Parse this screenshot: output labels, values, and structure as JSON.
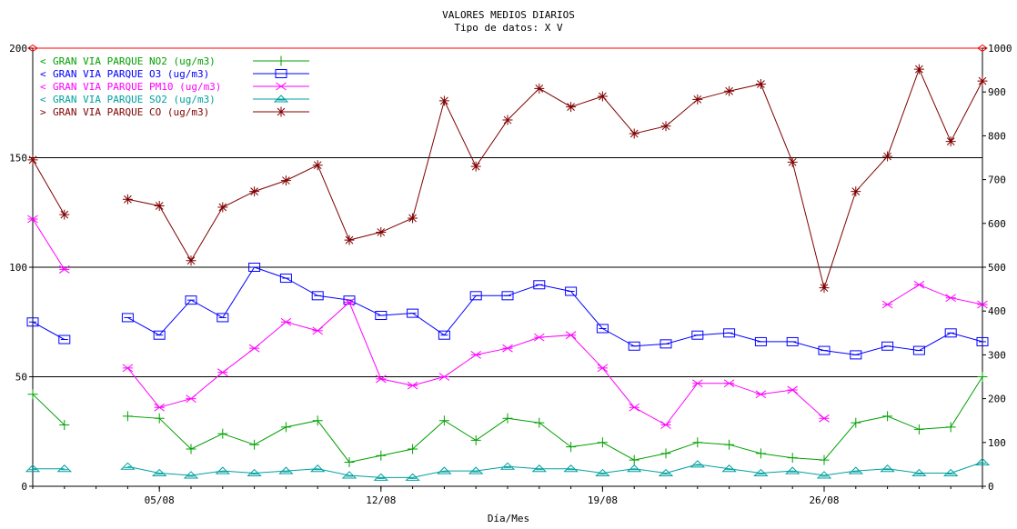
{
  "chart_data": {
    "type": "line",
    "title": "VALORES MEDIOS DIARIOS",
    "subtitle": "Tipo de datos:  X V",
    "xlabel": "Día/Mes",
    "x": [
      "01/08",
      "02/08",
      "03/08",
      "04/08",
      "05/08",
      "06/08",
      "07/08",
      "08/08",
      "09/08",
      "10/08",
      "11/08",
      "12/08",
      "13/08",
      "14/08",
      "15/08",
      "16/08",
      "17/08",
      "18/08",
      "19/08",
      "20/08",
      "21/08",
      "22/08",
      "23/08",
      "24/08",
      "25/08",
      "26/08",
      "27/08",
      "28/08",
      "29/08",
      "30/08",
      "31/08"
    ],
    "x_ticks": [
      "05/08",
      "12/08",
      "19/08",
      "26/08"
    ],
    "ylim_left": [
      0,
      200
    ],
    "yticks_left": [
      "0",
      "50",
      "100",
      "150",
      "200"
    ],
    "ylim_right": [
      0,
      1000
    ],
    "yticks_right": [
      "0",
      "100",
      "200",
      "300",
      "400",
      "500",
      "600",
      "700",
      "800",
      "900",
      "1000"
    ],
    "grid_lines_left": [
      50,
      100,
      150
    ],
    "legend_position": "top-left",
    "series": [
      {
        "name": "GRAN VIA PARQUE NO2  (ug/m3)",
        "color": "#00a000",
        "marker": "plus",
        "axis": "left",
        "legend_arrow": "<",
        "values": [
          42,
          28,
          null,
          32,
          31,
          17,
          24,
          19,
          27,
          30,
          11,
          14,
          17,
          30,
          21,
          31,
          29,
          18,
          20,
          12,
          15,
          20,
          19,
          15,
          13,
          12,
          29,
          32,
          26,
          27,
          50
        ]
      },
      {
        "name": "GRAN VIA PARQUE O3  (ug/m3)",
        "color": "#0000ff",
        "marker": "square",
        "axis": "left",
        "legend_arrow": "<",
        "values": [
          75,
          67,
          null,
          77,
          69,
          85,
          77,
          100,
          95,
          87,
          85,
          78,
          79,
          69,
          87,
          87,
          92,
          89,
          72,
          64,
          65,
          69,
          70,
          66,
          66,
          62,
          60,
          64,
          62,
          70,
          66
        ]
      },
      {
        "name": "GRAN VIA PARQUE PM10  (ug/m3)",
        "color": "#ff00ff",
        "marker": "x",
        "axis": "left",
        "legend_arrow": "<",
        "values": [
          122,
          99,
          null,
          54,
          36,
          40,
          52,
          63,
          75,
          71,
          84,
          49,
          46,
          50,
          60,
          63,
          68,
          69,
          54,
          36,
          28,
          47,
          47,
          42,
          44,
          31,
          null,
          83,
          92,
          86,
          83
        ]
      },
      {
        "name": "GRAN VIA PARQUE SO2  (ug/m3)",
        "color": "#00a0a0",
        "marker": "triangle",
        "axis": "left",
        "legend_arrow": "<",
        "values": [
          8,
          8,
          null,
          9,
          6,
          5,
          7,
          6,
          7,
          8,
          5,
          4,
          4,
          7,
          7,
          9,
          8,
          8,
          6,
          8,
          6,
          10,
          8,
          6,
          7,
          5,
          7,
          8,
          6,
          6,
          11
        ]
      },
      {
        "name": "GRAN VIA PARQUE CO  (ug/m3)",
        "color": "#800000",
        "marker": "star",
        "axis": "right",
        "legend_arrow": ">",
        "values": [
          745,
          620,
          null,
          655,
          640,
          515,
          637,
          673,
          698,
          733,
          562,
          580,
          612,
          880,
          730,
          836,
          908,
          866,
          890,
          805,
          822,
          883,
          902,
          918,
          740,
          453,
          673,
          753,
          952,
          787,
          925
        ]
      }
    ]
  }
}
